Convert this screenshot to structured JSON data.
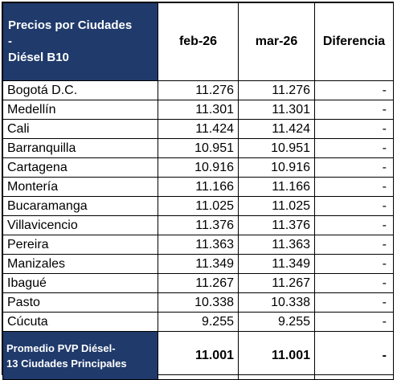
{
  "header": {
    "title_line1": "Precios por Ciudades",
    "title_line2": "-",
    "title_line3": "Diésel B10",
    "col_feb": "feb-26",
    "col_mar": "mar-26",
    "col_diff": "Diferencia"
  },
  "rows": [
    {
      "city": "Bogotá D.C.",
      "feb": "11.276",
      "mar": "11.276",
      "diff": "-"
    },
    {
      "city": "Medellín",
      "feb": "11.301",
      "mar": "11.301",
      "diff": "-"
    },
    {
      "city": "Cali",
      "feb": "11.424",
      "mar": "11.424",
      "diff": "-"
    },
    {
      "city": "Barranquilla",
      "feb": "10.951",
      "mar": "10.951",
      "diff": "-"
    },
    {
      "city": "Cartagena",
      "feb": "10.916",
      "mar": "10.916",
      "diff": "-"
    },
    {
      "city": "Montería",
      "feb": "11.166",
      "mar": "11.166",
      "diff": "-"
    },
    {
      "city": "Bucaramanga",
      "feb": "11.025",
      "mar": "11.025",
      "diff": "-"
    },
    {
      "city": "Villavicencio",
      "feb": "11.376",
      "mar": "11.376",
      "diff": "-"
    },
    {
      "city": "Pereira",
      "feb": "11.363",
      "mar": "11.363",
      "diff": "-"
    },
    {
      "city": "Manizales",
      "feb": "11.349",
      "mar": "11.349",
      "diff": "-"
    },
    {
      "city": "Ibagué",
      "feb": "11.267",
      "mar": "11.267",
      "diff": "-"
    },
    {
      "city": "Pasto",
      "feb": "10.338",
      "mar": "10.338",
      "diff": "-"
    },
    {
      "city": "Cúcuta",
      "feb": "9.255",
      "mar": "9.255",
      "diff": "-"
    }
  ],
  "footer": {
    "label_line1": "Promedio PVP Diésel-",
    "label_line2": "13 Ciudades Principales",
    "feb": "11.001",
    "mar": "11.001",
    "diff": "-"
  },
  "colors": {
    "header_bg": "#1f3a6b",
    "header_text": "#ffffff"
  }
}
